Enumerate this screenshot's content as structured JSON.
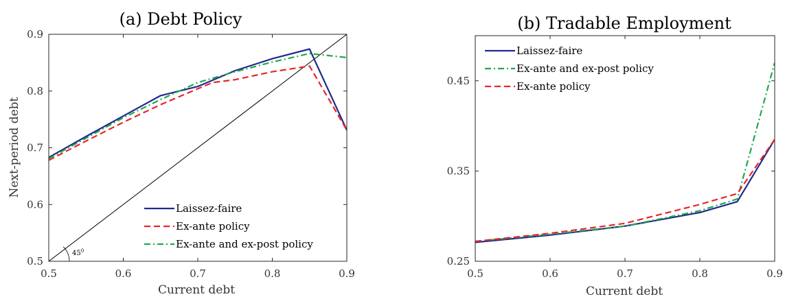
{
  "chart_data": [
    {
      "type": "line",
      "title": "(a) Debt Policy",
      "xlabel": "Current debt",
      "ylabel": "Next-period debt",
      "xlim": [
        0.5,
        0.9
      ],
      "ylim": [
        0.5,
        0.9
      ],
      "xticks": [
        "0.5",
        "0.6",
        "0.7",
        "0.8",
        "0.9"
      ],
      "yticks": [
        "0.5",
        "0.6",
        "0.7",
        "0.8",
        "0.9"
      ],
      "grid": false,
      "legend_position": "bottom-right",
      "annotation": {
        "text": "45",
        "superscript": "0",
        "x": 0.5,
        "y": 0.5
      },
      "reference_line": {
        "x": [
          0.5,
          0.9
        ],
        "y": [
          0.5,
          0.9
        ],
        "color": "#000000"
      },
      "series": [
        {
          "name": "Laissez-faire",
          "color": "#1f2a8c",
          "style": "solid",
          "x": [
            0.5,
            0.55,
            0.6,
            0.65,
            0.7,
            0.75,
            0.8,
            0.85,
            0.9
          ],
          "y": [
            0.683,
            0.72,
            0.756,
            0.792,
            0.808,
            0.836,
            0.857,
            0.874,
            0.731
          ]
        },
        {
          "name": "Ex-ante policy",
          "color": "#e8252a",
          "style": "dashed",
          "x": [
            0.5,
            0.55,
            0.6,
            0.65,
            0.7,
            0.72,
            0.75,
            0.8,
            0.85,
            0.9
          ],
          "y": [
            0.678,
            0.712,
            0.745,
            0.776,
            0.804,
            0.815,
            0.82,
            0.834,
            0.844,
            0.731
          ]
        },
        {
          "name": "Ex-ante and ex-post policy",
          "color": "#1fa84a",
          "style": "dashdot",
          "x": [
            0.5,
            0.55,
            0.6,
            0.65,
            0.7,
            0.75,
            0.8,
            0.85,
            0.9
          ],
          "y": [
            0.681,
            0.717,
            0.753,
            0.785,
            0.815,
            0.834,
            0.851,
            0.866,
            0.859
          ]
        }
      ]
    },
    {
      "type": "line",
      "title": "(b) Tradable Employment",
      "xlabel": "Current debt",
      "ylabel": "",
      "xlim": [
        0.5,
        0.9
      ],
      "ylim": [
        0.25,
        0.5
      ],
      "xticks": [
        "0.5",
        "0.6",
        "0.7",
        "0.8",
        "0.9"
      ],
      "yticks": [
        "0.25",
        "0.35",
        "0.45"
      ],
      "grid": false,
      "legend_position": "top-left",
      "series": [
        {
          "name": "Laissez-faire",
          "color": "#1f2a8c",
          "style": "solid",
          "x": [
            0.5,
            0.6,
            0.7,
            0.8,
            0.85,
            0.9
          ],
          "y": [
            0.271,
            0.279,
            0.289,
            0.304,
            0.316,
            0.385
          ]
        },
        {
          "name": "Ex-ante and ex-post policy",
          "color": "#1fa84a",
          "style": "dashdot",
          "x": [
            0.5,
            0.6,
            0.7,
            0.8,
            0.85,
            0.9
          ],
          "y": [
            0.272,
            0.28,
            0.289,
            0.306,
            0.319,
            0.47
          ]
        },
        {
          "name": "Ex-ante policy",
          "color": "#e8252a",
          "style": "dashed",
          "x": [
            0.5,
            0.6,
            0.7,
            0.8,
            0.85,
            0.9
          ],
          "y": [
            0.272,
            0.281,
            0.292,
            0.313,
            0.325,
            0.385
          ]
        }
      ]
    }
  ]
}
